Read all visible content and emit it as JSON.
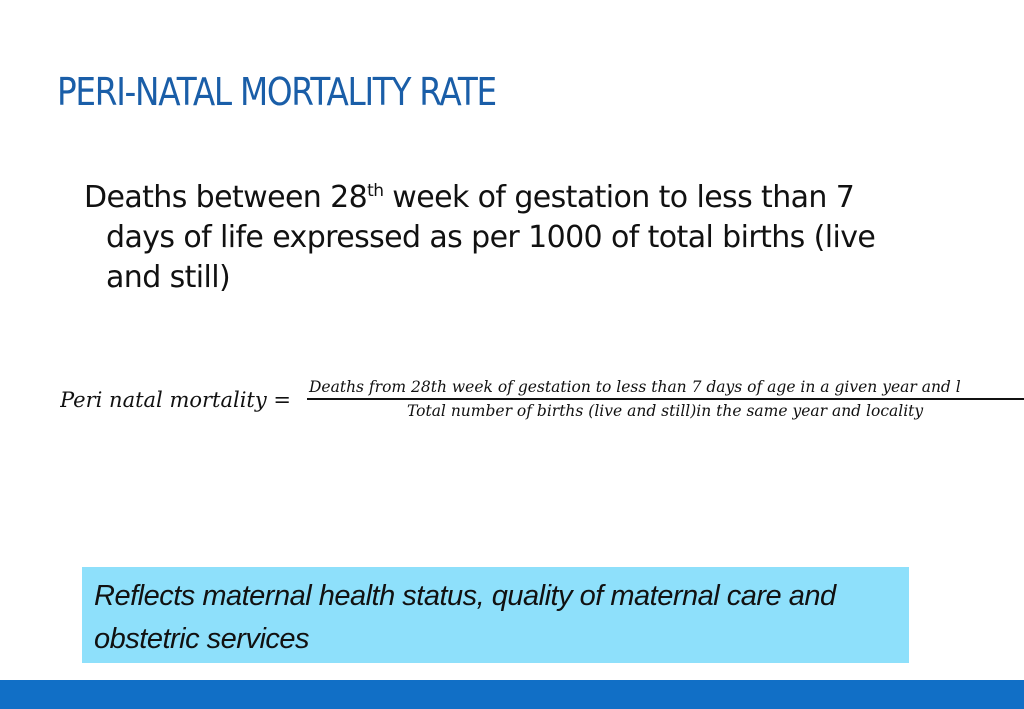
{
  "slide": {
    "title": "PERI-NATAL MORTALITY RATE",
    "definition": {
      "line1_pre": "Deaths between 28",
      "line1_sup": "th",
      "line1_post": " week of gestation to less than 7",
      "line2": "days of life expressed as per 1000 of total births (live",
      "line3": "and still)"
    },
    "formula": {
      "lhs": "Peri natal mortality =",
      "numerator": "Deaths from 28th week of gestation to less than 7 days of age in a given year and l",
      "denominator": "Total number of births (live and still)in the same year and locality"
    },
    "callout": {
      "text": "Reflects maternal health status, quality of maternal care and obstetric services",
      "background": "#8ee0fb"
    },
    "colors": {
      "title": "#1a5ea8",
      "footer_bar": "#116fc6"
    }
  }
}
